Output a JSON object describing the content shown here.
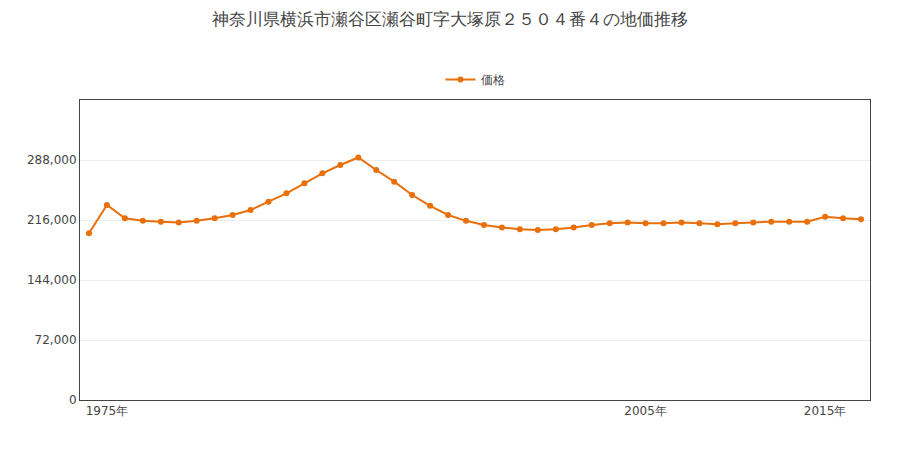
{
  "chart_data": {
    "type": "line",
    "title": "神奈川県横浜市瀬谷区瀬谷町字大塚原２５０４番４の地価推移",
    "x": [
      1974,
      1975,
      1976,
      1977,
      1978,
      1979,
      1980,
      1981,
      1982,
      1983,
      1984,
      1985,
      1986,
      1987,
      1988,
      1989,
      1990,
      1991,
      1992,
      1993,
      1994,
      1995,
      1996,
      1997,
      1998,
      1999,
      2000,
      2001,
      2002,
      2003,
      2004,
      2005,
      2006,
      2007,
      2008,
      2009,
      2010,
      2011,
      2012,
      2013,
      2014,
      2015,
      2016,
      2017
    ],
    "series": [
      {
        "name": "価格",
        "color": "#e8700a",
        "marker": "circle",
        "values": [
          200000,
          234000,
          218000,
          215000,
          214000,
          213000,
          215000,
          218000,
          222000,
          228000,
          238000,
          248000,
          260000,
          272000,
          282000,
          291000,
          276000,
          262000,
          246000,
          233000,
          222000,
          215000,
          210000,
          207000,
          205000,
          204000,
          205000,
          207000,
          210000,
          212000,
          213000,
          212000,
          212000,
          213000,
          212000,
          211000,
          212000,
          213000,
          214000,
          214000,
          214000,
          220000,
          218000,
          217000
        ]
      }
    ],
    "xlim": [
      1973.5,
      2017.5
    ],
    "xticks": [
      {
        "value": 1975,
        "label": "1975年"
      },
      {
        "value": 2005,
        "label": "2005年"
      },
      {
        "value": 2015,
        "label": "2015年"
      }
    ],
    "ylim": [
      0,
      360000
    ],
    "yticks": [
      0,
      {
        "value": 72000,
        "label": "72,000"
      },
      {
        "value": 144000,
        "label": "144,000"
      },
      {
        "value": 216000,
        "label": "216,000"
      },
      {
        "value": 288000,
        "label": "288,000"
      }
    ],
    "grid": "y",
    "legend": "top"
  }
}
